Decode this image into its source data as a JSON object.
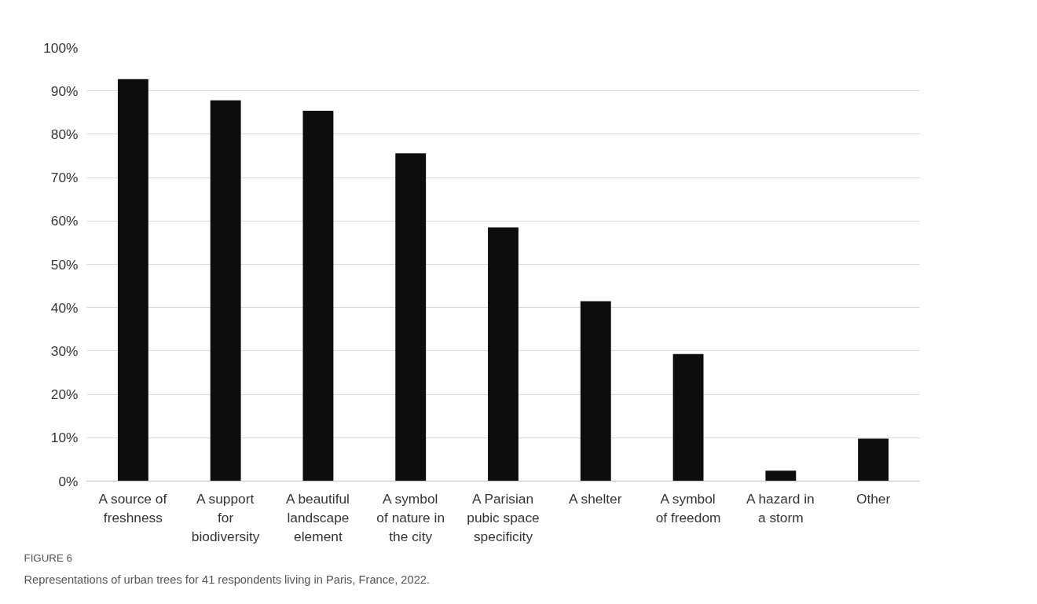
{
  "chart_data": {
    "type": "bar",
    "categories": [
      "A source of\nfreshness",
      "A support\nfor\nbiodiversity",
      "A beautiful\nlandscape\nelement",
      "A symbol\nof nature in\nthe city",
      "A Parisian\npubic space\nspecificity",
      "A shelter",
      "A symbol\nof freedom",
      "A hazard in\na storm",
      "Other"
    ],
    "values": [
      92.7,
      87.8,
      85.4,
      75.6,
      58.5,
      41.5,
      29.3,
      2.4,
      9.8
    ],
    "color": "#0d0d0d",
    "ylim": [
      0,
      100
    ],
    "yticks": [
      {
        "value": 0,
        "label": "0%"
      },
      {
        "value": 10,
        "label": "10%"
      },
      {
        "value": 20,
        "label": "20%"
      },
      {
        "value": 30,
        "label": "30%"
      },
      {
        "value": 40,
        "label": "40%"
      },
      {
        "value": 50,
        "label": "50%"
      },
      {
        "value": 60,
        "label": "60%"
      },
      {
        "value": 70,
        "label": "70%"
      },
      {
        "value": 80,
        "label": "80%"
      },
      {
        "value": 90,
        "label": "90%"
      },
      {
        "value": 100,
        "label": "100%"
      }
    ],
    "grid": "y",
    "annotations": [
      "FIGURE 6",
      "Representations of urban trees for 41 respondents living in Paris, France, 2022."
    ]
  }
}
